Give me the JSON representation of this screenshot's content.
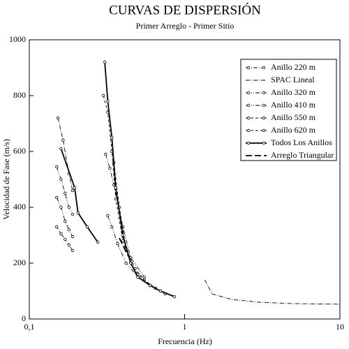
{
  "chart_data": {
    "type": "line",
    "title": "CURVAS DE DISPERSIÓN",
    "subtitle": "Primer Arreglo - Primer Sitio",
    "x_label": "Frecuencia (Hz)",
    "y_label": "Velocidad de Fase (m/s)",
    "xscale": "log",
    "xlim": [
      0.1,
      10
    ],
    "xticks": [
      {
        "value": 0.1,
        "label": "0,1"
      },
      1,
      10
    ],
    "ylim": [
      0,
      1000
    ],
    "yticks": [
      0,
      200,
      400,
      600,
      800,
      1000
    ],
    "legend": "upper right",
    "series": [
      {
        "name": "Anillo 220 m",
        "color": "#000000",
        "line_style": "dash-dot",
        "marker": "circle",
        "x": [
          0.153,
          0.165,
          0.18,
          0.19
        ],
        "values": [
          720,
          640,
          520,
          460
        ]
      },
      {
        "name": "SPAC Lineal",
        "color": "#000000",
        "line_style": "dash-dot",
        "marker": "none",
        "x": [
          1.35,
          1.5,
          2,
          3,
          5,
          10
        ],
        "values": [
          140,
          90,
          70,
          60,
          55,
          53
        ]
      },
      {
        "name": "Anillo 320 m",
        "color": "#000000",
        "line_style": "dash-dot-dot",
        "marker": "circle",
        "x": [
          0.15,
          0.16,
          0.17,
          0.18,
          0.19,
          null,
          0.31,
          0.33,
          0.35,
          0.4,
          0.45,
          0.55
        ],
        "values": [
          545,
          500,
          450,
          400,
          375,
          null,
          590,
          540,
          480,
          330,
          220,
          150
        ]
      },
      {
        "name": "Anillo 410 m",
        "color": "#000000",
        "line_style": "dash-dot-dot",
        "marker": "circle",
        "x": [
          0.15,
          0.16,
          0.17,
          0.18,
          0.19,
          null,
          0.32,
          0.34,
          0.37,
          0.42,
          0.5,
          0.6
        ],
        "values": [
          435,
          400,
          350,
          320,
          295,
          null,
          370,
          330,
          270,
          200,
          150,
          120
        ]
      },
      {
        "name": "Anillo 550 m",
        "color": "#000000",
        "line_style": "dashed",
        "marker": "circle",
        "x": [
          0.15,
          0.16,
          0.17,
          0.18,
          0.19,
          null,
          0.35,
          0.38,
          0.42,
          0.48,
          0.55,
          0.65,
          0.75
        ],
        "values": [
          330,
          305,
          285,
          265,
          245,
          null,
          560,
          400,
          250,
          180,
          140,
          110,
          90
        ]
      },
      {
        "name": "Anillo 620 m",
        "color": "#000000",
        "line_style": "dashed",
        "marker": "circle",
        "x": [
          0.3,
          0.32,
          0.34,
          0.36,
          0.4,
          0.45,
          0.5,
          0.6,
          0.7
        ],
        "values": [
          800,
          740,
          600,
          430,
          280,
          200,
          160,
          120,
          100
        ]
      },
      {
        "name": "Todos Los Anillos",
        "color": "#000000",
        "line_style": "solid",
        "marker": "circle",
        "x": [
          0.16,
          0.196,
          0.206,
          0.236,
          0.276,
          null,
          0.306,
          0.32,
          0.34,
          0.36,
          0.4,
          0.45,
          0.5,
          0.6,
          0.7,
          0.86
        ],
        "values": [
          610,
          470,
          380,
          330,
          275,
          null,
          920,
          780,
          650,
          470,
          300,
          200,
          150,
          120,
          100,
          80
        ]
      },
      {
        "name": "Arreglo Triangular",
        "color": "#000000",
        "line_style": "long-dash",
        "marker": "none",
        "x": [
          0.38,
          0.42,
          0.46
        ],
        "values": [
          290,
          240,
          200
        ]
      }
    ]
  }
}
